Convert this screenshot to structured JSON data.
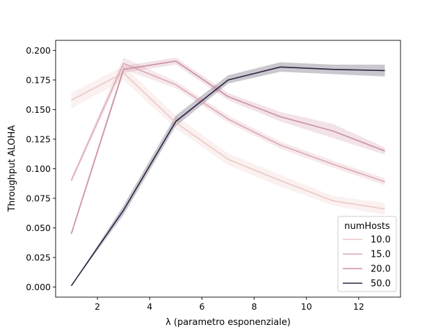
{
  "chart_data": {
    "type": "line",
    "title": "",
    "xlabel": "λ (parametro esponenziale)",
    "ylabel": "Throughput ALOHA",
    "xlim": [
      0.4,
      13.6
    ],
    "ylim": [
      -0.0085,
      0.2085
    ],
    "x_ticks": [
      2,
      4,
      6,
      8,
      10,
      12
    ],
    "x_tick_labels": [
      "2",
      "4",
      "6",
      "8",
      "10",
      "12"
    ],
    "y_ticks": [
      0.0,
      0.025,
      0.05,
      0.075,
      0.1,
      0.125,
      0.15,
      0.175,
      0.2
    ],
    "y_tick_labels": [
      "0.000",
      "0.025",
      "0.050",
      "0.075",
      "0.100",
      "0.125",
      "0.150",
      "0.175",
      "0.200"
    ],
    "grid": false,
    "legend": {
      "title": "numHosts",
      "placement": "lower-right"
    },
    "x": [
      1,
      3,
      5,
      7,
      9,
      11,
      13
    ],
    "series": [
      {
        "name": "10.0",
        "color": "#ebc8c5",
        "values": [
          0.158,
          0.181,
          0.139,
          0.108,
          0.09,
          0.073,
          0.066
        ],
        "ci_low": [
          0.151,
          0.175,
          0.134,
          0.103,
          0.085,
          0.069,
          0.061
        ],
        "ci_high": [
          0.164,
          0.187,
          0.145,
          0.113,
          0.095,
          0.077,
          0.071
        ]
      },
      {
        "name": "15.0",
        "color": "#dca8b0",
        "values": [
          0.09,
          0.189,
          0.171,
          0.142,
          0.12,
          0.104,
          0.089
        ],
        "ci_low": [
          0.088,
          0.184,
          0.168,
          0.139,
          0.117,
          0.101,
          0.086
        ],
        "ci_high": [
          0.092,
          0.194,
          0.174,
          0.145,
          0.123,
          0.107,
          0.092
        ]
      },
      {
        "name": "20.0",
        "color": "#cb8ea3",
        "values": [
          0.045,
          0.184,
          0.191,
          0.161,
          0.144,
          0.132,
          0.115
        ],
        "ci_low": [
          0.043,
          0.181,
          0.188,
          0.158,
          0.14,
          0.126,
          0.112
        ],
        "ci_high": [
          0.047,
          0.187,
          0.194,
          0.164,
          0.148,
          0.138,
          0.118
        ]
      },
      {
        "name": "50.0",
        "color": "#2d1e3e",
        "values": [
          0.001,
          0.065,
          0.14,
          0.175,
          0.186,
          0.184,
          0.183
        ],
        "ci_low": [
          0.001,
          0.061,
          0.136,
          0.172,
          0.182,
          0.18,
          0.178
        ],
        "ci_high": [
          0.001,
          0.069,
          0.145,
          0.179,
          0.19,
          0.188,
          0.188
        ]
      }
    ]
  }
}
